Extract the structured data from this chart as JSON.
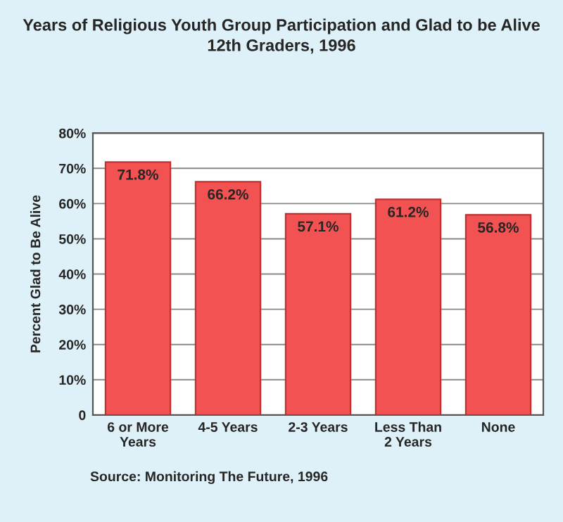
{
  "chart_data": {
    "type": "bar",
    "title": "Years of Religious Youth Group Participation and Glad to be Alive\n12th Graders, 1996",
    "ylabel": "Percent Glad to Be Alive",
    "categories": [
      "6 or More\nYears",
      "4-5 Years",
      "2-3 Years",
      "Less Than\n2 Years",
      "None"
    ],
    "values": [
      71.8,
      66.2,
      57.1,
      61.2,
      56.8
    ],
    "value_labels": [
      "71.8%",
      "66.2%",
      "57.1%",
      "61.2%",
      "56.8%"
    ],
    "color": "#f25252",
    "ylim": [
      0,
      80
    ],
    "yticks": [
      0,
      {
        "value": 10,
        "label": "10%"
      },
      {
        "value": 20,
        "label": "20%"
      },
      {
        "value": 30,
        "label": "30%"
      },
      {
        "value": 40,
        "label": "40%"
      },
      {
        "value": 50,
        "label": "50%"
      },
      {
        "value": 60,
        "label": "60%"
      },
      {
        "value": 70,
        "label": "70%"
      },
      {
        "value": 80,
        "label": "80%"
      }
    ],
    "grid": "y",
    "annotations": [
      "Source: Monitoring The Future, 1996"
    ]
  }
}
